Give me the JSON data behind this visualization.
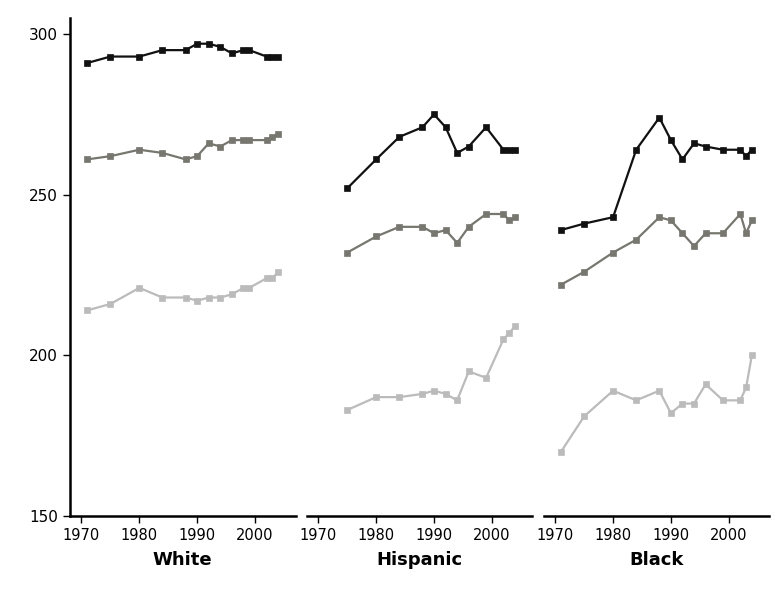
{
  "white": {
    "years": [
      1971,
      1975,
      1980,
      1984,
      1988,
      1990,
      1992,
      1994,
      1996,
      1998,
      1999,
      2002,
      2003,
      2004
    ],
    "age17": [
      291,
      293,
      293,
      295,
      295,
      297,
      297,
      296,
      294,
      295,
      295,
      293,
      293,
      293
    ],
    "age13": [
      261,
      262,
      264,
      263,
      261,
      262,
      266,
      265,
      267,
      267,
      267,
      267,
      268,
      269
    ],
    "age9": [
      214,
      216,
      221,
      218,
      218,
      217,
      218,
      218,
      219,
      221,
      221,
      224,
      224,
      226
    ]
  },
  "hispanic": {
    "years": [
      1975,
      1980,
      1984,
      1988,
      1990,
      1992,
      1994,
      1996,
      1999,
      2002,
      2003,
      2004
    ],
    "age17": [
      252,
      261,
      268,
      271,
      275,
      271,
      263,
      265,
      271,
      264,
      264,
      264
    ],
    "age13": [
      232,
      237,
      240,
      240,
      238,
      239,
      235,
      240,
      244,
      244,
      242,
      243
    ],
    "age9": [
      183,
      187,
      187,
      188,
      189,
      188,
      186,
      195,
      193,
      205,
      207,
      209
    ]
  },
  "black": {
    "years": [
      1971,
      1975,
      1980,
      1984,
      1988,
      1990,
      1992,
      1994,
      1996,
      1999,
      2002,
      2003,
      2004
    ],
    "age17": [
      239,
      241,
      243,
      264,
      274,
      267,
      261,
      266,
      265,
      264,
      264,
      262,
      264
    ],
    "age13": [
      222,
      226,
      232,
      236,
      243,
      242,
      238,
      234,
      238,
      238,
      244,
      238,
      242
    ],
    "age9": [
      170,
      181,
      189,
      186,
      189,
      182,
      185,
      185,
      191,
      186,
      186,
      190,
      200
    ]
  },
  "colors": {
    "age17": "#111111",
    "age13": "#777770",
    "age9": "#bbbbbb"
  },
  "ylim": [
    150,
    305
  ],
  "yticks": [
    150,
    200,
    250,
    300
  ],
  "xlim": [
    1968,
    2007
  ],
  "xticks": [
    1970,
    1980,
    1990,
    2000
  ],
  "background": "#ffffff",
  "group_labels": [
    "White",
    "Hispanic",
    "Black"
  ],
  "groups": [
    "white",
    "hispanic",
    "black"
  ],
  "linewidth": 1.6,
  "markersize": 5,
  "spine_linewidth": 1.8
}
